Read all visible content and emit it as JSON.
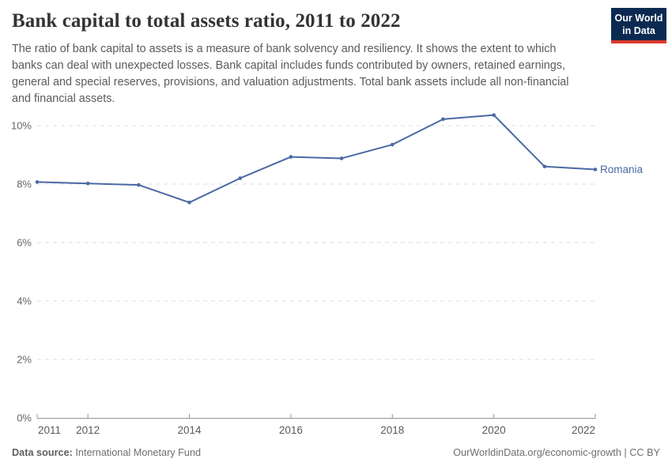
{
  "header": {
    "title": "Bank capital to total assets ratio, 2011 to 2022",
    "subtitle": "The ratio of bank capital to assets is a measure of bank solvency and resiliency. It shows the extent to which banks can deal with unexpected losses. Bank capital includes funds contributed by owners, retained earnings, general and special reserves, provisions, and valuation adjustments. Total bank assets include all non-financial and financial assets.",
    "logo": {
      "line1": "Our World",
      "line2": "in Data",
      "bg_color": "#0C2A51",
      "bar_color": "#DE3A2D"
    }
  },
  "chart_data": {
    "type": "line",
    "title": "Bank capital to total assets ratio, 2011 to 2022",
    "x": [
      2011,
      2012,
      2013,
      2014,
      2015,
      2016,
      2017,
      2018,
      2019,
      2020,
      2021,
      2022
    ],
    "series": [
      {
        "name": "Romania",
        "color": "#4B69A5",
        "values": [
          8.07,
          8.02,
          7.97,
          7.37,
          8.2,
          8.93,
          8.88,
          9.35,
          10.22,
          10.36,
          8.6,
          8.5
        ]
      }
    ],
    "x_tick_labels": [
      2011,
      2012,
      2014,
      2016,
      2018,
      2020,
      2022
    ],
    "y_ticks": [
      0,
      2,
      4,
      6,
      8,
      10
    ],
    "y_tick_suffix": "%",
    "ylim": [
      0,
      10.8
    ],
    "xlim": [
      2011,
      2022
    ],
    "grid": "horizontal-dashed",
    "legend_position": "end-of-line-label",
    "colors": {
      "gridline": "#dcdcdc",
      "axis": "#949494",
      "y_tick_label": "#666666",
      "x_tick_label": "#5a5a5a"
    }
  },
  "footer": {
    "datasource_label": "Data source:",
    "datasource_value": "International Monetary Fund",
    "credit": "OurWorldinData.org/economic-growth | CC BY"
  }
}
